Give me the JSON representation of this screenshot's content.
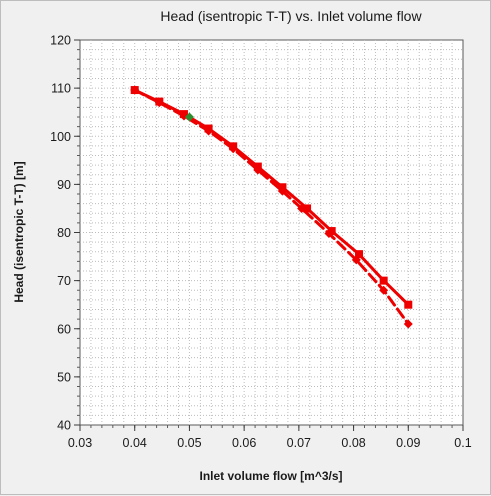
{
  "chart_data": {
    "type": "line",
    "title": "Head (isentropic T-T) vs. Inlet volume flow",
    "xlabel": "Inlet volume flow [m^3/s]",
    "ylabel": "Head (isentropic T-T) [m]",
    "xlim": [
      0.03,
      0.1
    ],
    "ylim": [
      40,
      120
    ],
    "xticks": [
      0.03,
      0.04,
      0.05,
      0.06,
      0.07,
      0.08,
      0.09,
      0.1
    ],
    "xtick_labels": [
      "0.03",
      "0.04",
      "0.05",
      "0.06",
      "0.07",
      "0.08",
      "0.09",
      "0.1"
    ],
    "yticks": [
      40,
      50,
      60,
      70,
      80,
      90,
      100,
      110,
      120
    ],
    "ytick_labels": [
      "40",
      "50",
      "60",
      "70",
      "80",
      "90",
      "100",
      "110",
      "120"
    ],
    "grid": true,
    "grid_style": "dotted",
    "legend": "none",
    "series": [
      {
        "line_style": "solid",
        "marker": "square",
        "color": "#ee0000",
        "x": [
          0.04,
          0.0445,
          0.049,
          0.0535,
          0.058,
          0.0625,
          0.067,
          0.0715,
          0.076,
          0.081,
          0.0855,
          0.09
        ],
        "y": [
          109.6,
          107.2,
          104.6,
          101.6,
          97.9,
          93.7,
          89.4,
          85.0,
          80.3,
          75.5,
          70.0,
          65.0
        ]
      },
      {
        "line_style": "dashed",
        "marker": "diamond",
        "color": "#ee0000",
        "x": [
          0.04,
          0.0445,
          0.049,
          0.0535,
          0.058,
          0.0625,
          0.067,
          0.0705,
          0.0755,
          0.0805,
          0.0855,
          0.09
        ],
        "y": [
          109.6,
          107.0,
          104.2,
          101.1,
          97.4,
          93.0,
          88.6,
          85.0,
          79.8,
          74.3,
          68.0,
          61.0
        ]
      }
    ],
    "highlight_point": {
      "x": 0.05,
      "y": 104.0,
      "color": "#2e8b2e"
    }
  }
}
